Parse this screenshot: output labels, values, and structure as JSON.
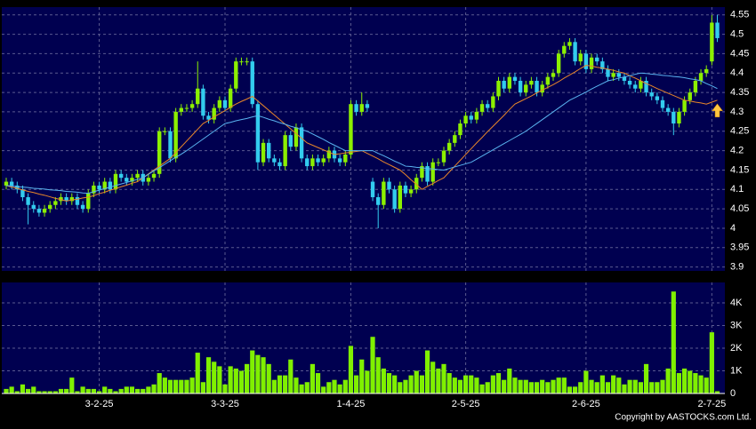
{
  "chart_data": [
    {
      "type": "candlestick",
      "categories": [
        null,
        null,
        null,
        null,
        null,
        null,
        null,
        null,
        null,
        null,
        null,
        null,
        null,
        null,
        null,
        null,
        null,
        "3-2-25",
        null,
        null,
        null,
        null,
        null,
        null,
        null,
        null,
        null,
        null,
        null,
        null,
        null,
        null,
        null,
        null,
        null,
        null,
        null,
        null,
        null,
        null,
        "3-3-25",
        null,
        null,
        null,
        null,
        null,
        null,
        null,
        null,
        null,
        null,
        null,
        null,
        null,
        null,
        null,
        null,
        null,
        null,
        null,
        null,
        null,
        null,
        "1-4-25",
        null,
        null,
        null,
        null,
        null,
        null,
        null,
        null,
        null,
        null,
        null,
        null,
        null,
        null,
        null,
        null,
        null,
        null,
        null,
        null,
        "2-5-25",
        null,
        null,
        null,
        null,
        null,
        null,
        null,
        null,
        null,
        null,
        null,
        null,
        null,
        null,
        null,
        null,
        null,
        null,
        null,
        null,
        null,
        "2-6-25",
        null,
        null,
        null,
        null,
        null,
        null,
        null,
        null,
        null,
        null,
        null,
        null,
        null,
        null,
        null,
        null,
        null,
        null,
        null,
        null,
        null,
        null,
        "2-7-25",
        null
      ],
      "open": [
        4.11,
        4.12,
        4.11,
        4.1,
        4.08,
        4.06,
        4.05,
        4.04,
        4.05,
        4.06,
        4.07,
        4.08,
        4.07,
        4.08,
        4.06,
        4.05,
        4.09,
        4.11,
        4.1,
        4.12,
        4.1,
        4.14,
        4.13,
        4.12,
        4.13,
        4.14,
        4.12,
        4.13,
        4.14,
        4.25,
        4.25,
        4.18,
        4.3,
        4.31,
        4.31,
        4.32,
        4.36,
        4.29,
        4.28,
        4.31,
        4.33,
        4.31,
        4.36,
        4.43,
        4.43,
        4.43,
        4.32,
        4.17,
        4.22,
        4.18,
        4.17,
        4.16,
        4.24,
        4.21,
        4.26,
        4.18,
        4.16,
        4.18,
        4.17,
        4.18,
        4.2,
        4.18,
        4.17,
        4.19,
        4.32,
        4.3,
        4.32,
        4.12,
        4.08,
        4.06,
        4.12,
        4.1,
        4.05,
        4.11,
        4.09,
        4.1,
        4.13,
        4.16,
        4.12,
        4.17,
        4.17,
        4.2,
        4.22,
        4.24,
        4.27,
        4.29,
        4.28,
        4.3,
        4.32,
        4.31,
        4.34,
        4.38,
        4.36,
        4.39,
        4.38,
        4.35,
        4.37,
        4.38,
        4.35,
        4.37,
        4.39,
        4.4,
        4.45,
        4.47,
        4.48,
        4.43,
        4.45,
        4.41,
        4.44,
        4.43,
        4.41,
        4.39,
        4.4,
        4.39,
        4.38,
        4.37,
        4.36,
        4.38,
        4.35,
        4.34,
        4.33,
        4.31,
        4.3,
        4.27,
        4.3,
        4.33,
        4.35,
        4.38,
        4.4,
        4.43,
        4.53
      ],
      "high": [
        4.13,
        4.13,
        4.12,
        4.11,
        4.09,
        4.07,
        4.06,
        4.06,
        4.07,
        4.08,
        4.09,
        4.09,
        4.09,
        4.09,
        4.07,
        4.1,
        4.12,
        4.12,
        4.13,
        4.13,
        4.15,
        4.15,
        4.14,
        4.14,
        4.15,
        4.15,
        4.14,
        4.15,
        4.26,
        4.26,
        4.26,
        4.31,
        4.32,
        4.32,
        4.33,
        4.43,
        4.37,
        4.3,
        4.32,
        4.34,
        4.34,
        4.37,
        4.44,
        4.44,
        4.44,
        4.44,
        4.33,
        4.23,
        4.23,
        4.19,
        4.18,
        4.25,
        4.25,
        4.27,
        4.27,
        4.19,
        4.19,
        4.19,
        4.19,
        4.21,
        4.21,
        4.19,
        4.2,
        4.33,
        4.33,
        4.35,
        4.33,
        4.13,
        4.09,
        4.13,
        4.13,
        4.11,
        4.12,
        4.12,
        4.11,
        4.14,
        4.17,
        4.17,
        4.18,
        4.18,
        4.21,
        4.23,
        4.25,
        4.28,
        4.3,
        4.3,
        4.31,
        4.33,
        4.33,
        4.35,
        4.39,
        4.39,
        4.4,
        4.4,
        4.39,
        4.38,
        4.39,
        4.39,
        4.38,
        4.4,
        4.41,
        4.46,
        4.48,
        4.49,
        4.49,
        4.46,
        4.46,
        4.45,
        4.45,
        4.44,
        4.42,
        4.41,
        4.41,
        4.4,
        4.39,
        4.38,
        4.39,
        4.39,
        4.36,
        4.35,
        4.34,
        4.32,
        4.31,
        4.31,
        4.34,
        4.36,
        4.39,
        4.41,
        4.42,
        4.55,
        4.55
      ],
      "low": [
        4.1,
        4.1,
        4.09,
        4.07,
        4.01,
        4.04,
        4.03,
        4.03,
        4.04,
        4.05,
        4.06,
        4.06,
        4.06,
        4.05,
        4.04,
        4.04,
        4.08,
        4.09,
        4.09,
        4.09,
        4.09,
        4.12,
        4.11,
        4.11,
        4.12,
        4.11,
        4.11,
        4.12,
        4.13,
        4.24,
        4.17,
        4.17,
        4.29,
        4.3,
        4.3,
        4.31,
        4.28,
        4.27,
        4.27,
        4.3,
        4.3,
        4.3,
        4.35,
        4.42,
        4.42,
        4.31,
        4.15,
        4.16,
        4.17,
        4.16,
        4.15,
        4.15,
        4.2,
        4.2,
        4.17,
        4.15,
        4.15,
        4.16,
        4.16,
        4.17,
        4.17,
        4.16,
        4.16,
        4.18,
        4.29,
        4.29,
        4.3,
        4.07,
        4.0,
        4.05,
        4.09,
        4.04,
        4.04,
        4.08,
        4.08,
        4.09,
        4.12,
        4.11,
        4.11,
        4.16,
        4.16,
        4.19,
        4.21,
        4.23,
        4.26,
        4.27,
        4.27,
        4.29,
        4.3,
        4.3,
        4.33,
        4.35,
        4.35,
        4.37,
        4.34,
        4.34,
        4.36,
        4.34,
        4.34,
        4.36,
        4.38,
        4.39,
        4.44,
        4.46,
        4.42,
        4.42,
        4.4,
        4.4,
        4.42,
        4.4,
        4.38,
        4.38,
        4.38,
        4.37,
        4.36,
        4.35,
        4.35,
        4.34,
        4.33,
        4.32,
        4.3,
        4.29,
        4.24,
        4.26,
        4.29,
        4.32,
        4.34,
        4.37,
        4.39,
        4.42,
        4.48
      ],
      "close": [
        4.12,
        4.11,
        4.1,
        4.08,
        4.06,
        4.05,
        4.04,
        4.05,
        4.06,
        4.07,
        4.08,
        4.07,
        4.08,
        4.06,
        4.05,
        4.09,
        4.11,
        4.1,
        4.12,
        4.1,
        4.14,
        4.13,
        4.12,
        4.13,
        4.14,
        4.12,
        4.13,
        4.14,
        4.25,
        4.25,
        4.18,
        4.3,
        4.31,
        4.31,
        4.32,
        4.36,
        4.29,
        4.28,
        4.31,
        4.33,
        4.31,
        4.36,
        4.43,
        4.43,
        4.43,
        4.32,
        4.17,
        4.22,
        4.18,
        4.17,
        4.16,
        4.24,
        4.21,
        4.26,
        4.18,
        4.16,
        4.18,
        4.17,
        4.18,
        4.2,
        4.18,
        4.17,
        4.19,
        4.32,
        4.3,
        4.32,
        4.31,
        4.08,
        4.06,
        4.12,
        4.1,
        4.05,
        4.11,
        4.09,
        4.1,
        4.13,
        4.16,
        4.12,
        4.17,
        4.17,
        4.2,
        4.22,
        4.24,
        4.27,
        4.29,
        4.28,
        4.3,
        4.32,
        4.31,
        4.34,
        4.38,
        4.36,
        4.39,
        4.38,
        4.35,
        4.37,
        4.38,
        4.35,
        4.37,
        4.39,
        4.4,
        4.45,
        4.47,
        4.48,
        4.43,
        4.45,
        4.41,
        4.44,
        4.43,
        4.41,
        4.39,
        4.4,
        4.39,
        4.38,
        4.37,
        4.36,
        4.38,
        4.35,
        4.34,
        4.33,
        4.31,
        4.3,
        4.27,
        4.3,
        4.33,
        4.35,
        4.38,
        4.4,
        4.41,
        4.53,
        4.49
      ],
      "up_color": "#8cf000",
      "down_color": "#33ccee",
      "series": [
        {
          "color": "#e8862a",
          "values": [
            4.11,
            4.106,
            4.103,
            4.099,
            4.095,
            4.092,
            4.088,
            4.085,
            4.081,
            4.077,
            4.074,
            4.07,
            4.073,
            4.075,
            4.078,
            4.08,
            4.084,
            4.089,
            4.093,
            4.098,
            4.102,
            4.107,
            4.111,
            4.116,
            4.12,
            4.13,
            4.14,
            4.15,
            4.16,
            4.17,
            4.18,
            4.195,
            4.21,
            4.225,
            4.24,
            4.255,
            4.27,
            4.278,
            4.287,
            4.295,
            4.303,
            4.312,
            4.32,
            4.327,
            4.333,
            4.34,
            4.328,
            4.316,
            4.304,
            4.292,
            4.28,
            4.268,
            4.256,
            4.244,
            4.232,
            4.22,
            4.214,
            4.208,
            4.202,
            4.196,
            4.19,
            4.192,
            4.194,
            4.196,
            4.198,
            4.2,
            4.193,
            4.186,
            4.179,
            4.171,
            4.164,
            4.157,
            4.15,
            4.138,
            4.125,
            4.113,
            4.1,
            4.108,
            4.115,
            4.123,
            4.13,
            4.145,
            4.16,
            4.175,
            4.19,
            4.205,
            4.22,
            4.234,
            4.249,
            4.263,
            4.277,
            4.291,
            4.306,
            4.32,
            4.327,
            4.334,
            4.341,
            4.349,
            4.356,
            4.363,
            4.37,
            4.378,
            4.387,
            4.395,
            4.403,
            4.412,
            4.42,
            4.418,
            4.415,
            4.413,
            4.41,
            4.407,
            4.403,
            4.4,
            4.393,
            4.387,
            4.38,
            4.373,
            4.367,
            4.36,
            4.354,
            4.348,
            4.342,
            4.336,
            4.33,
            4.328,
            4.325,
            4.323,
            4.32,
            4.325,
            4.33
          ]
        },
        {
          "color": "#5ab4f0",
          "values": [
            4.11,
            4.109,
            4.107,
            4.106,
            4.105,
            4.103,
            4.102,
            4.101,
            4.099,
            4.098,
            4.097,
            4.095,
            4.094,
            4.093,
            4.091,
            4.09,
            4.094,
            4.098,
            4.102,
            4.106,
            4.11,
            4.114,
            4.118,
            4.122,
            4.126,
            4.13,
            4.139,
            4.148,
            4.156,
            4.165,
            4.174,
            4.183,
            4.191,
            4.2,
            4.21,
            4.22,
            4.23,
            4.24,
            4.25,
            4.26,
            4.27,
            4.273,
            4.277,
            4.28,
            4.283,
            4.287,
            4.29,
            4.286,
            4.281,
            4.277,
            4.272,
            4.268,
            4.263,
            4.259,
            4.254,
            4.25,
            4.243,
            4.236,
            4.229,
            4.221,
            4.214,
            4.207,
            4.2,
            4.2,
            4.2,
            4.2,
            4.2,
            4.2,
            4.193,
            4.187,
            4.18,
            4.173,
            4.167,
            4.16,
            4.159,
            4.157,
            4.156,
            4.154,
            4.153,
            4.151,
            4.15,
            4.154,
            4.158,
            4.162,
            4.166,
            4.17,
            4.178,
            4.186,
            4.194,
            4.202,
            4.21,
            4.218,
            4.226,
            4.234,
            4.242,
            4.25,
            4.26,
            4.27,
            4.28,
            4.29,
            4.3,
            4.31,
            4.32,
            4.33,
            4.337,
            4.344,
            4.351,
            4.359,
            4.366,
            4.373,
            4.38,
            4.383,
            4.387,
            4.39,
            4.393,
            4.397,
            4.4,
            4.399,
            4.397,
            4.396,
            4.394,
            4.393,
            4.391,
            4.39,
            4.388,
            4.385,
            4.383,
            4.38,
            4.373,
            4.367,
            4.36
          ]
        }
      ],
      "ylim": [
        3.89,
        4.57
      ],
      "yticks": [
        3.9,
        3.95,
        4,
        4.05,
        4.1,
        4.15,
        4.2,
        4.25,
        4.3,
        4.35,
        4.4,
        4.45,
        4.5,
        4.55
      ],
      "grid": true
    },
    {
      "type": "bar",
      "values": [
        200,
        300,
        100,
        400,
        200,
        300,
        100,
        100,
        100,
        100,
        200,
        200,
        700,
        100,
        300,
        200,
        200,
        100,
        300,
        200,
        100,
        200,
        300,
        300,
        200,
        200,
        300,
        400,
        900,
        700,
        600,
        600,
        600,
        600,
        700,
        1800,
        500,
        1600,
        1400,
        1200,
        400,
        1200,
        1100,
        1000,
        1300,
        1900,
        1700,
        1600,
        1300,
        600,
        800,
        800,
        1500,
        700,
        400,
        500,
        1300,
        900,
        300,
        500,
        600,
        400,
        600,
        2100,
        800,
        1500,
        1000,
        2500,
        1600,
        1100,
        900,
        800,
        500,
        600,
        800,
        1000,
        800,
        1900,
        1400,
        1100,
        1300,
        900,
        700,
        600,
        800,
        800,
        700,
        400,
        500,
        800,
        900,
        600,
        1100,
        700,
        600,
        600,
        500,
        500,
        600,
        500,
        600,
        700,
        700,
        300,
        300,
        500,
        1000,
        600,
        500,
        800,
        500,
        800,
        700,
        400,
        600,
        600,
        500,
        1300,
        500,
        500,
        600,
        1100,
        4500,
        900,
        1100,
        1000,
        900,
        800,
        700,
        2700,
        100
      ],
      "color": "#80f000",
      "ylim": [
        0,
        4900
      ],
      "yticks": [
        0,
        {
          "value": 1000,
          "label": "1K"
        },
        {
          "value": 2000,
          "label": "2K"
        },
        {
          "value": 3000,
          "label": "3K"
        },
        {
          "value": 4000,
          "label": "4K"
        }
      ],
      "grid": true
    }
  ],
  "footer": "Copyright by AASTOCKS.com Ltd."
}
